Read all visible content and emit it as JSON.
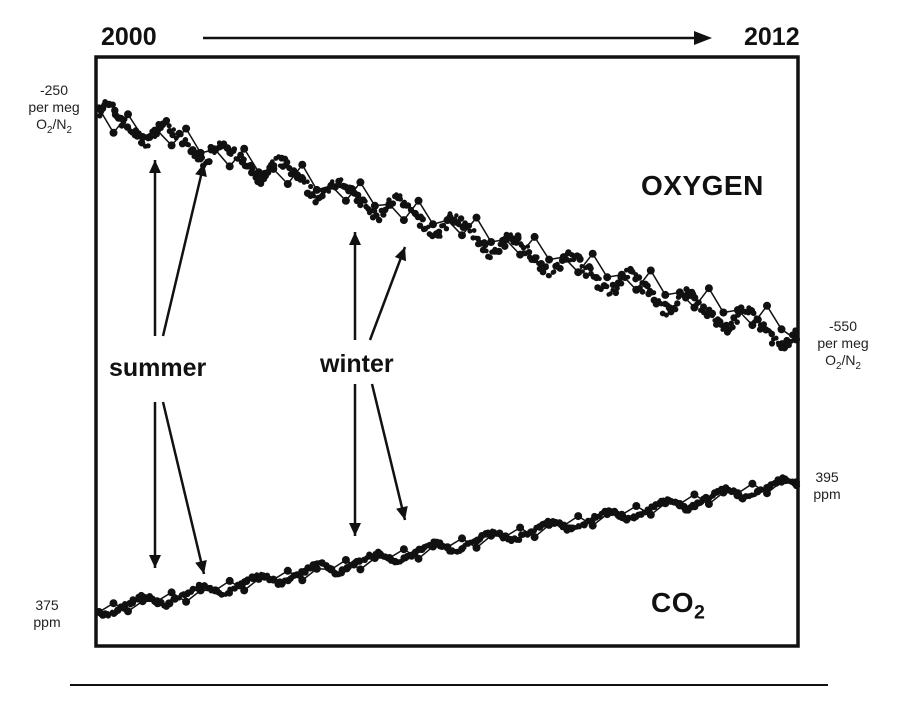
{
  "header": {
    "start_year": "2000",
    "end_year": "2012"
  },
  "oxygen_axis": {
    "left_value": "-250",
    "left_unit": "per meg",
    "left_species": "O",
    "left_sub1": "2",
    "left_sep": "/N",
    "left_sub2": "2",
    "right_value": "-550",
    "right_unit": "per meg",
    "right_species": "O",
    "right_sub1": "2",
    "right_sep": "/N",
    "right_sub2": "2"
  },
  "co2_axis": {
    "left_value": "375",
    "left_unit": "ppm",
    "right_value": "395",
    "right_unit": "ppm"
  },
  "labels": {
    "oxygen": "OXYGEN",
    "co2_main": "CO",
    "co2_sub": "2",
    "summer": "summer",
    "winter": "winter"
  },
  "colors": {
    "ink": "#111111",
    "background": "#ffffff"
  },
  "chart_data": {
    "type": "scatter",
    "x_range": [
      2000,
      2012
    ],
    "series": [
      {
        "name": "OXYGEN",
        "unit": "per meg O2/N2",
        "range": [
          -250,
          -550
        ],
        "trend_start": -268,
        "trend_end": -535,
        "seasonal_amplitude": 24,
        "x": [
          2000.0,
          2000.25,
          2000.5,
          2000.75,
          2001.0,
          2001.25,
          2001.5,
          2001.75,
          2002.0,
          2002.25,
          2002.5,
          2002.75,
          2003.0,
          2003.25,
          2003.5,
          2003.75,
          2004.0,
          2004.25,
          2004.5,
          2004.75,
          2005.0,
          2005.25,
          2005.5,
          2005.75,
          2006.0,
          2006.25,
          2006.5,
          2006.75,
          2007.0,
          2007.25,
          2007.5,
          2007.75,
          2008.0,
          2008.25,
          2008.5,
          2008.75,
          2009.0,
          2009.25,
          2009.5,
          2009.75,
          2010.0,
          2010.25,
          2010.5,
          2010.75,
          2011.0,
          2011.25,
          2011.5,
          2011.75,
          2012.0
        ],
        "y": [
          -260,
          -289,
          -267,
          -294,
          -286,
          -304,
          -284,
          -313,
          -309,
          -329,
          -308,
          -336,
          -332,
          -350,
          -327,
          -357,
          -352,
          -370,
          -348,
          -376,
          -374,
          -393,
          -370,
          -398,
          -393,
          -411,
          -390,
          -419,
          -416,
          -434,
          -413,
          -440,
          -437,
          -455,
          -433,
          -461,
          -458,
          -476,
          -453,
          -482,
          -479,
          -497,
          -474,
          -503,
          -500,
          -518,
          -495,
          -523,
          -535
        ]
      },
      {
        "name": "CO2",
        "unit": "ppm",
        "range": [
          375,
          395
        ],
        "trend_start": 375.5,
        "trend_end": 394.5,
        "seasonal_amplitude": 1.5,
        "x": [
          2000.0,
          2000.25,
          2000.5,
          2000.75,
          2001.0,
          2001.25,
          2001.5,
          2001.75,
          2002.0,
          2002.25,
          2002.5,
          2002.75,
          2003.0,
          2003.25,
          2003.5,
          2003.75,
          2004.0,
          2004.25,
          2004.5,
          2004.75,
          2005.0,
          2005.25,
          2005.5,
          2005.75,
          2006.0,
          2006.25,
          2006.5,
          2006.75,
          2007.0,
          2007.25,
          2007.5,
          2007.75,
          2008.0,
          2008.25,
          2008.5,
          2008.75,
          2009.0,
          2009.25,
          2009.5,
          2009.75,
          2010.0,
          2010.25,
          2010.5,
          2010.75,
          2011.0,
          2011.25,
          2011.5,
          2011.75,
          2012.0
        ],
        "y": [
          375.3,
          376.6,
          375.4,
          376.9,
          376.9,
          378.2,
          376.8,
          378.5,
          378.5,
          379.9,
          378.5,
          380.2,
          380.1,
          381.4,
          380.0,
          381.7,
          381.6,
          383.0,
          381.6,
          383.3,
          383.3,
          384.6,
          383.2,
          385.0,
          384.9,
          386.2,
          384.8,
          386.6,
          386.5,
          387.8,
          386.4,
          388.2,
          388.1,
          389.5,
          388.1,
          389.8,
          389.7,
          391.0,
          389.7,
          391.4,
          391.3,
          392.7,
          391.3,
          393.0,
          392.9,
          394.3,
          392.9,
          394.6,
          394.5
        ]
      }
    ]
  }
}
